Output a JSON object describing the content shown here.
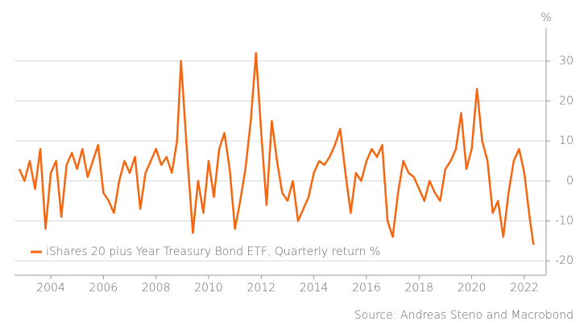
{
  "chart_data": {
    "type": "line",
    "ylabel": "%",
    "source": "Source: Andreas Steno and Macrobond",
    "xlim": [
      2002.62,
      2022.83
    ],
    "xticks": [
      2004,
      2006,
      2008,
      2010,
      2012,
      2014,
      2016,
      2018,
      2020,
      2022
    ],
    "ylim": [
      -23.6,
      36.2
    ],
    "yticks": [
      -20,
      -10,
      0,
      10,
      20,
      30
    ],
    "grid": true,
    "legend": "lower left",
    "x": [
      2002.8,
      2003.0,
      2003.2,
      2003.4,
      2003.6,
      2003.8,
      2004.0,
      2004.2,
      2004.4,
      2004.6,
      2004.8,
      2005.0,
      2005.2,
      2005.4,
      2005.6,
      2005.8,
      2006.0,
      2006.2,
      2006.4,
      2006.6,
      2006.8,
      2007.0,
      2007.2,
      2007.4,
      2007.6,
      2007.8,
      2008.0,
      2008.2,
      2008.4,
      2008.6,
      2008.8,
      2008.95,
      2009.2,
      2009.4,
      2009.6,
      2009.8,
      2010.0,
      2010.2,
      2010.4,
      2010.6,
      2010.8,
      2011.0,
      2011.2,
      2011.4,
      2011.6,
      2011.8,
      2012.0,
      2012.2,
      2012.4,
      2012.6,
      2012.8,
      2013.0,
      2013.2,
      2013.4,
      2013.6,
      2013.8,
      2014.0,
      2014.2,
      2014.4,
      2014.6,
      2014.8,
      2015.0,
      2015.2,
      2015.4,
      2015.6,
      2015.8,
      2016.0,
      2016.2,
      2016.4,
      2016.6,
      2016.8,
      2017.0,
      2017.2,
      2017.4,
      2017.6,
      2017.8,
      2018.0,
      2018.2,
      2018.4,
      2018.6,
      2018.8,
      2019.0,
      2019.2,
      2019.4,
      2019.6,
      2019.8,
      2020.0,
      2020.2,
      2020.4,
      2020.6,
      2020.8,
      2021.0,
      2021.2,
      2021.4,
      2021.6,
      2021.8,
      2022.0,
      2022.2,
      2022.35
    ],
    "series": [
      {
        "name": "iShares 20 plus Year Treasury Bond ETF, Quarterly return %",
        "color": "#f5660f",
        "values": [
          3,
          0,
          5,
          -2,
          8,
          -12,
          2,
          5,
          -9,
          4,
          7,
          3,
          8,
          1,
          5,
          9,
          -3,
          -5,
          -8,
          0,
          5,
          2,
          6,
          -7,
          2,
          5,
          8,
          4,
          6,
          2,
          10,
          30,
          5,
          -13,
          0,
          -8,
          5,
          -4,
          8,
          12,
          3,
          -12,
          -5,
          3,
          15,
          32,
          12,
          -6,
          15,
          5,
          -3,
          -5,
          0,
          -10,
          -7,
          -4,
          2,
          5,
          4,
          6,
          9,
          13,
          2,
          -8,
          2,
          0,
          5,
          8,
          6,
          9,
          -10,
          -14,
          -3,
          5,
          2,
          1,
          -2,
          -5,
          0,
          -3,
          -5,
          3,
          5,
          8,
          17,
          3,
          8,
          23,
          10,
          5,
          -8,
          -5,
          -14,
          -3,
          5,
          8,
          2,
          -9,
          -16
        ]
      }
    ]
  }
}
